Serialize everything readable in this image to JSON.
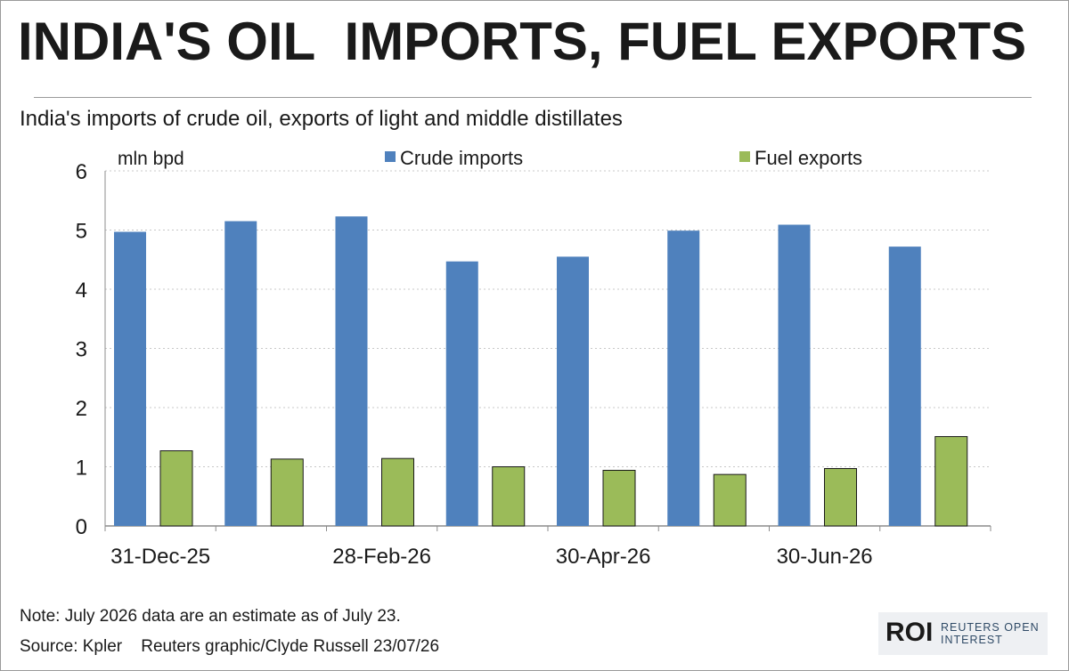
{
  "title": "INDIA'S OIL  IMPORTS, FUEL EXPORTS",
  "subtitle": "India's imports of crude oil, exports of light and middle distillates",
  "note": "Note: July 2026 data are an estimate as of July 23.",
  "source": "Source: Kpler    Reuters graphic/Clyde Russell 23/07/26",
  "logo": {
    "mark": "ROI",
    "line1": "REUTERS OPEN",
    "line2": "INTEREST"
  },
  "colors": {
    "crude": "#4f81bd",
    "fuel": "#9bbb59",
    "grid": "#c8c8c8",
    "axis": "#8c8c8c",
    "text": "#1a1a1a"
  },
  "chart_data": {
    "type": "bar",
    "ylabel": "mln bpd",
    "ylim": [
      0,
      6
    ],
    "yticks": [
      0,
      1,
      2,
      3,
      4,
      5,
      6
    ],
    "grid": true,
    "legend_placement": "top",
    "categories": [
      "31-Dec-25",
      "",
      "28-Feb-26",
      "",
      "30-Apr-26",
      "",
      "30-Jun-26",
      ""
    ],
    "series": [
      {
        "name": "Crude imports",
        "values": [
          4.97,
          5.15,
          5.23,
          4.47,
          4.55,
          4.99,
          5.09,
          4.72
        ]
      },
      {
        "name": "Fuel exports",
        "values": [
          1.27,
          1.13,
          1.14,
          1.0,
          0.94,
          0.87,
          0.97,
          1.51
        ]
      }
    ]
  }
}
